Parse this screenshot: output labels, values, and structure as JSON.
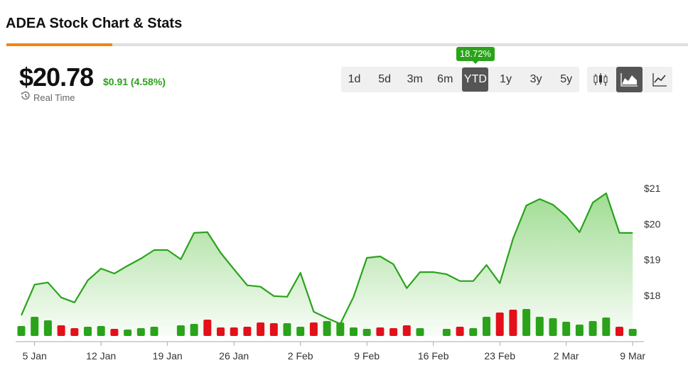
{
  "header": {
    "title": "ADEA Stock Chart & Stats"
  },
  "quote": {
    "price": "$20.78",
    "change": "$0.91 (4.58%)",
    "realtime": "Real Time"
  },
  "ranges": {
    "buttons": [
      "1d",
      "5d",
      "3m",
      "6m",
      "YTD",
      "1y",
      "3y",
      "5y"
    ],
    "selected": 4,
    "selected_change": "18.72%"
  },
  "chart_data": {
    "type": "area",
    "categories": [
      null,
      "5 Jan",
      null,
      null,
      null,
      null,
      "12 Jan",
      null,
      null,
      null,
      null,
      "19 Jan",
      null,
      null,
      null,
      null,
      "26 Jan",
      null,
      null,
      null,
      null,
      "2 Feb",
      null,
      null,
      null,
      null,
      "9 Feb",
      null,
      null,
      null,
      null,
      "16 Feb",
      null,
      null,
      null,
      null,
      "23 Feb",
      null,
      null,
      null,
      null,
      "2 Mar",
      null,
      null,
      null,
      null,
      "9 Mar"
    ],
    "values": [
      17.44,
      18.3,
      18.36,
      17.94,
      17.8,
      18.42,
      18.75,
      18.61,
      18.83,
      19.03,
      19.27,
      19.27,
      19.01,
      19.75,
      19.77,
      19.19,
      18.73,
      18.28,
      18.24,
      17.98,
      17.96,
      18.63,
      17.54,
      17.36,
      17.2,
      17.96,
      19.05,
      19.09,
      18.87,
      18.2,
      18.65,
      18.65,
      18.59,
      18.4,
      18.4,
      18.85,
      18.34,
      19.59,
      20.52,
      20.7,
      20.54,
      20.22,
      19.77,
      20.6,
      20.86,
      19.75,
      19.75
    ],
    "color": "#2aa31b",
    "fill_color": "#8fd67f",
    "ylim": [
      16.86,
      21.5
    ],
    "yticks": [
      {
        "value": 18,
        "label": "$18"
      },
      {
        "value": 19,
        "label": "$19"
      },
      {
        "value": 20,
        "label": "$20"
      },
      {
        "value": 21,
        "label": "$21"
      }
    ],
    "volume": [
      14,
      27,
      22,
      15,
      11,
      13,
      14,
      10,
      9,
      11,
      13,
      null,
      15,
      17,
      23,
      12,
      12,
      13,
      19,
      18,
      18,
      13,
      19,
      21,
      19,
      12,
      10,
      12,
      11,
      15,
      11,
      null,
      10,
      13,
      11,
      27,
      33,
      37,
      38,
      27,
      25,
      20,
      16,
      21,
      26,
      13,
      10
    ],
    "volume_up": [
      true,
      true,
      true,
      false,
      false,
      true,
      true,
      false,
      true,
      true,
      true,
      true,
      true,
      true,
      false,
      false,
      false,
      false,
      false,
      false,
      true,
      true,
      false,
      true,
      true,
      true,
      true,
      false,
      false,
      false,
      true,
      true,
      true,
      false,
      true,
      true,
      false,
      false,
      true,
      true,
      true,
      true,
      true,
      true,
      true,
      false,
      true
    ],
    "vlim": [
      0,
      233
    ],
    "up_color": "#2aa31b",
    "down_color": "#e3101a"
  }
}
